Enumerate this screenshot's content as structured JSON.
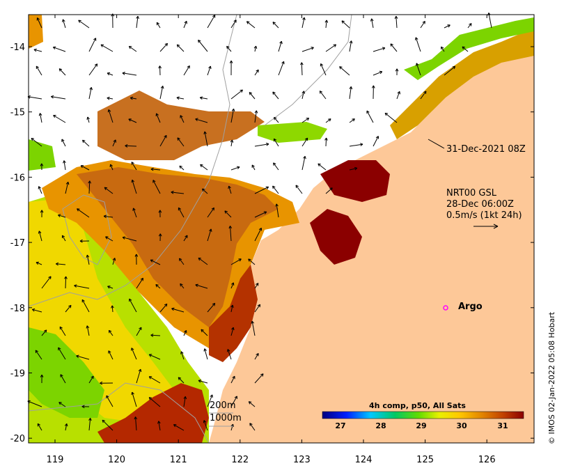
{
  "map": {
    "x_axis": {
      "ticks": [
        "119",
        "120",
        "121",
        "122",
        "123",
        "124",
        "125",
        "126"
      ]
    },
    "y_axis": {
      "ticks": [
        "-14",
        "-15",
        "-16",
        "-17",
        "-18",
        "-19",
        "-20"
      ]
    },
    "colorbar": {
      "title": "4h comp, p50, All Sats",
      "labels": [
        "27",
        "28",
        "29",
        "30",
        "31"
      ],
      "colors": [
        "#00007f",
        "#0020ff",
        "#00c8ff",
        "#00c864",
        "#64dc00",
        "#e8f000",
        "#ffc800",
        "#e08000",
        "#c04000",
        "#8b0000"
      ]
    },
    "annotations": {
      "date_label": "31-Dec-2021 08Z",
      "vector_source": "NRT00 GSL",
      "vector_time": "28-Dec 06:00Z",
      "vector_scale": "0.5m/s (1kt 24h)",
      "argo_label": "Argo",
      "contour_200": "200m",
      "contour_1000": "1000m"
    },
    "credit": "© IMOS 02-Jan-2022 05:08 Hobart",
    "colors": {
      "land": "#fdc898",
      "argo": "#ff00ff"
    }
  }
}
